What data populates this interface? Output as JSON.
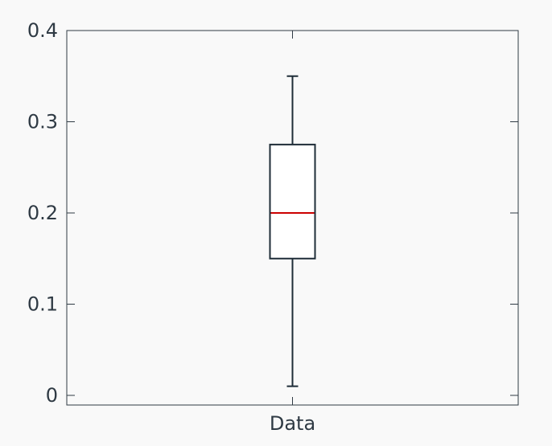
{
  "chart_data": {
    "type": "box",
    "title": "",
    "xlabel": "",
    "ylabel": "",
    "categories": [
      "Data"
    ],
    "ylim": [
      0,
      0.4
    ],
    "yticks": [
      0,
      0.1,
      0.2,
      0.3,
      0.4
    ],
    "ytick_labels": [
      "0",
      "0.1",
      "0.2",
      "0.3",
      "0.4"
    ],
    "grid": false,
    "boxes": [
      {
        "category": "Data",
        "whisker_low": 0.01,
        "q1": 0.15,
        "median": 0.2,
        "q3": 0.275,
        "whisker_high": 0.35
      }
    ],
    "colors": {
      "background": "#f9f9f9",
      "box_edge": "#1f2d38",
      "median": "#cc0000",
      "axes": "#2f3a44"
    }
  }
}
